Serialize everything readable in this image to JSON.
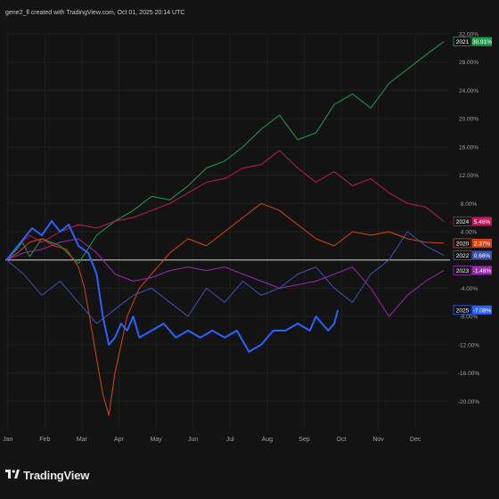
{
  "header": {
    "text": "gene2_fl created with TradingView.com, Oct 01, 2025 20:14 UTC"
  },
  "footer": {
    "brand": "TradingView"
  },
  "colors": {
    "background": "#131313",
    "grid": "#1f1f1f",
    "baseline": "#b0b0b0",
    "axis_text": "#9aa0a6"
  },
  "chart_data": {
    "type": "line",
    "title": "",
    "xlabel": "",
    "ylabel": "",
    "x_ticks": [
      "Jan",
      "Feb",
      "Mar",
      "Apr",
      "May",
      "Jun",
      "Jul",
      "Aug",
      "Sep",
      "Oct",
      "Nov",
      "Dec"
    ],
    "y_ticks": [
      "32.00%",
      "28.00%",
      "24.00%",
      "20.00%",
      "16.00%",
      "12.00%",
      "8.00%",
      "4.00%",
      "-4.00%",
      "-8.00%",
      "-12.00%",
      "-16.00%",
      "-20.00%"
    ],
    "ylim": [
      -24,
      32
    ],
    "grid": true,
    "series": [
      {
        "name": "2021",
        "color": "#1f9c4b",
        "last": "30.91%",
        "x": [
          1,
          8,
          14,
          20,
          30,
          45,
          60,
          75,
          90,
          105,
          120,
          135,
          150,
          165,
          180,
          195,
          210,
          225,
          240,
          255,
          270,
          285,
          300,
          315,
          330,
          345,
          360
        ],
        "values": [
          0,
          1.2,
          2.5,
          0.5,
          3,
          2,
          -0.5,
          3.5,
          5.5,
          7,
          9,
          8.5,
          10.5,
          13,
          14,
          16,
          18.5,
          20.5,
          17,
          18,
          22,
          23.5,
          21.5,
          25,
          27,
          29,
          30.91
        ]
      },
      {
        "name": "2024",
        "color": "#c2185b",
        "last": "5.46%",
        "x": [
          1,
          10,
          20,
          30,
          45,
          60,
          75,
          90,
          105,
          120,
          135,
          150,
          165,
          180,
          195,
          210,
          225,
          240,
          255,
          270,
          285,
          300,
          315,
          330,
          345,
          360
        ],
        "values": [
          0,
          2,
          3.5,
          2.5,
          4,
          5,
          4.5,
          5.5,
          6,
          7,
          8,
          9.5,
          11,
          11.5,
          13,
          13.5,
          15.5,
          13,
          11,
          12.5,
          10.5,
          11.5,
          9.5,
          8,
          7.5,
          5.46
        ]
      },
      {
        "name": "2020",
        "color": "#d84315",
        "last": "2.37%",
        "x": [
          1,
          10,
          20,
          30,
          40,
          50,
          60,
          65,
          70,
          75,
          80,
          85,
          90,
          95,
          100,
          110,
          120,
          135,
          150,
          165,
          180,
          195,
          210,
          225,
          240,
          255,
          270,
          285,
          300,
          315,
          330,
          345,
          360
        ],
        "values": [
          0,
          1,
          2.5,
          3,
          2,
          1.5,
          -1,
          -4,
          -9,
          -14,
          -19,
          -22,
          -16,
          -12,
          -8,
          -4,
          -2,
          1,
          3,
          2,
          4,
          6,
          8,
          7,
          5,
          3,
          2,
          4,
          3.5,
          4,
          3,
          2.5,
          2.37
        ]
      },
      {
        "name": "2022",
        "color": "#3f51b5",
        "last": "0.66%",
        "x": [
          1,
          15,
          30,
          45,
          60,
          75,
          90,
          105,
          120,
          135,
          150,
          165,
          180,
          195,
          210,
          225,
          240,
          255,
          270,
          285,
          300,
          315,
          330,
          345,
          360
        ],
        "values": [
          0,
          -2,
          -5,
          -3,
          -6,
          -9,
          -7,
          -5,
          -4,
          -6,
          -8,
          -4,
          -6,
          -3,
          -5,
          -4,
          -2,
          -1,
          -4,
          -6,
          -2,
          0,
          4,
          2,
          0.66
        ]
      },
      {
        "name": "2023",
        "color": "#9c27b0",
        "last": "-1.48%",
        "x": [
          1,
          15,
          30,
          45,
          60,
          75,
          90,
          105,
          120,
          135,
          150,
          165,
          180,
          195,
          210,
          225,
          240,
          255,
          270,
          285,
          300,
          315,
          330,
          345,
          360
        ],
        "values": [
          0,
          1,
          1.5,
          2.5,
          3,
          1,
          -2,
          -3,
          -2.5,
          -1.5,
          -1,
          -1.5,
          -1,
          -2,
          -3,
          -4,
          -3.5,
          -3,
          -2,
          -1,
          -4,
          -8,
          -5,
          -3,
          -1.48
        ]
      },
      {
        "name": "2025",
        "color": "#2962ff",
        "last": "-7.08%",
        "x": [
          1,
          8,
          15,
          22,
          30,
          38,
          45,
          52,
          60,
          68,
          75,
          80,
          85,
          90,
          95,
          100,
          105,
          110,
          120,
          130,
          140,
          150,
          160,
          170,
          180,
          190,
          200,
          210,
          215,
          220,
          230,
          240,
          250,
          255,
          260,
          265,
          270,
          273
        ],
        "values": [
          0,
          1.5,
          3,
          4.5,
          3.5,
          5.5,
          4,
          5,
          2,
          1,
          -2,
          -8,
          -12,
          -11,
          -9,
          -10,
          -8,
          -11,
          -10,
          -9,
          -11,
          -10,
          -11,
          -10,
          -11,
          -10,
          -13,
          -12,
          -11,
          -10,
          -10,
          -9,
          -10,
          -8,
          -9,
          -10,
          -9,
          -7.08
        ]
      }
    ]
  }
}
